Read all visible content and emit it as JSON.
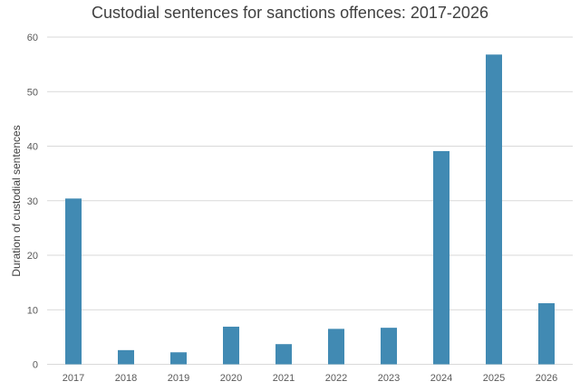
{
  "chart_data": {
    "type": "bar",
    "title": "Custodial sentences for sanctions offences: 2017-2026",
    "xlabel": "",
    "ylabel": "Duration of custodial sentences",
    "categories": [
      "2017",
      "2018",
      "2019",
      "2020",
      "2021",
      "2022",
      "2023",
      "2024",
      "2025",
      "2026"
    ],
    "values": [
      30.4,
      2.6,
      2.2,
      6.9,
      3.7,
      6.5,
      6.7,
      39.1,
      56.8,
      11.2
    ],
    "ylim": [
      0,
      60
    ],
    "yticks": [
      0,
      10,
      20,
      30,
      40,
      50,
      60
    ],
    "grid": true,
    "legend": "none",
    "bar_color": "#418AB3",
    "grid_color": "#D9D9D9"
  }
}
